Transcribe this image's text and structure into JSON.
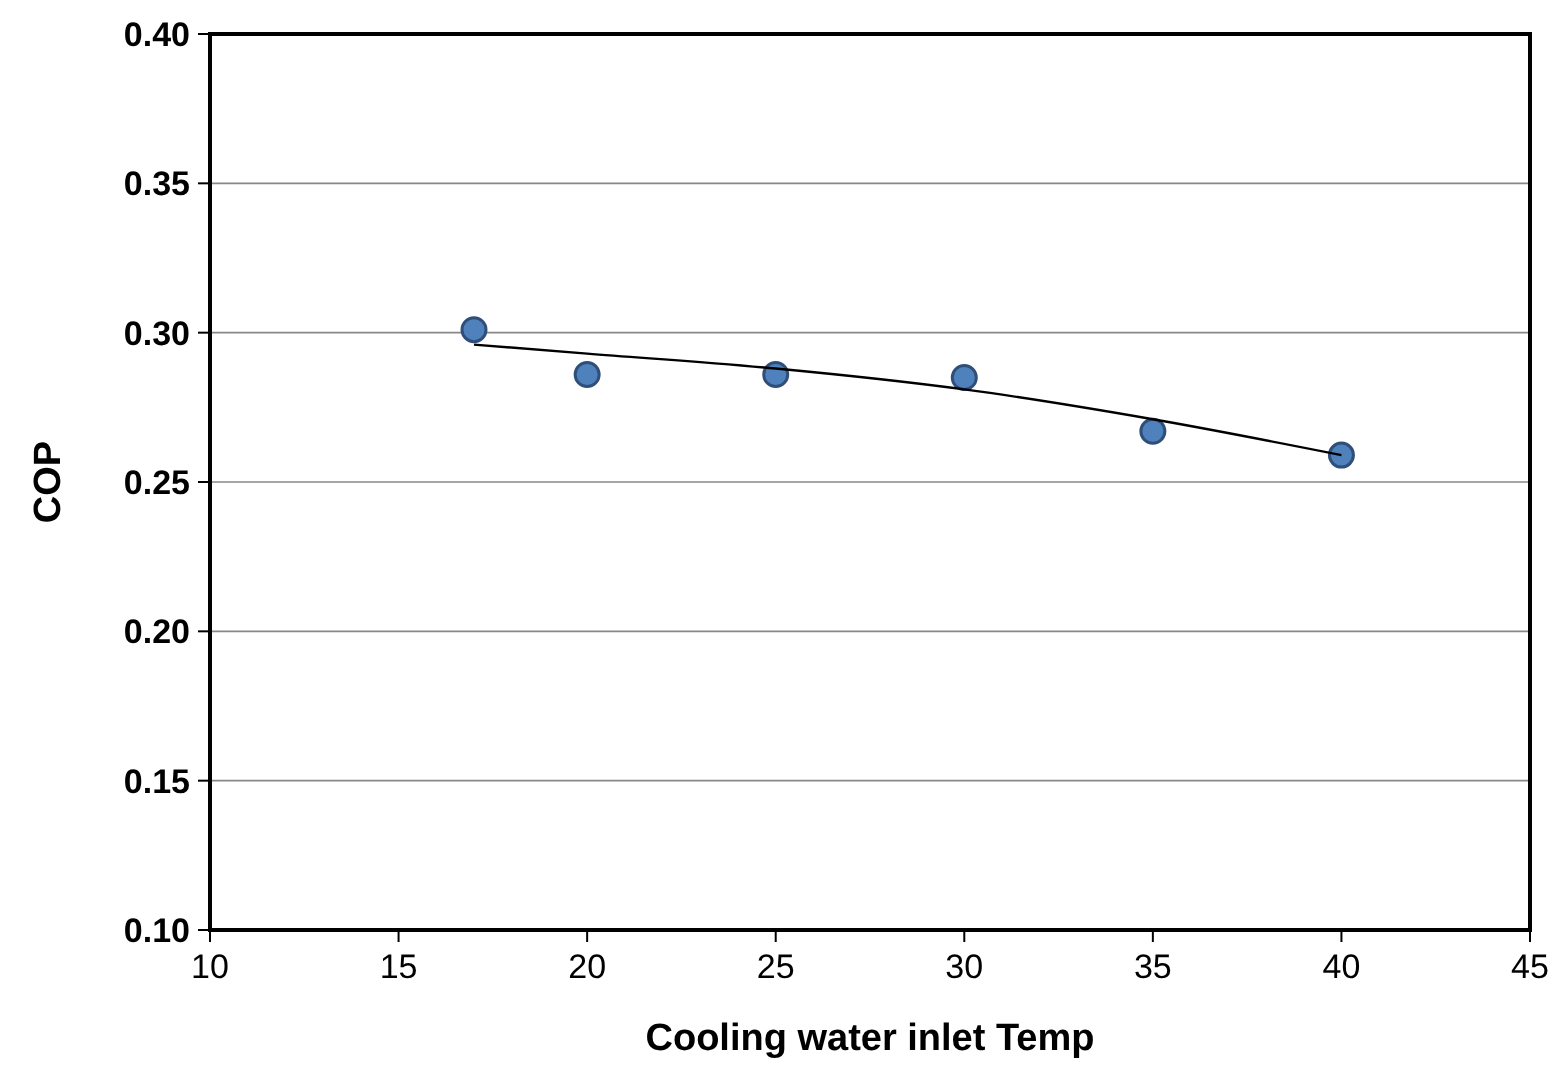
{
  "chart_data": {
    "type": "scatter",
    "xlabel": "Cooling water inlet Temp",
    "ylabel": "COP",
    "xlim": [
      10,
      45
    ],
    "xticks": [
      10,
      15,
      20,
      25,
      30,
      35,
      40,
      45
    ],
    "ylim": [
      0.1,
      0.4
    ],
    "yticks": [
      {
        "value": 0.1,
        "label": "0.10"
      },
      {
        "value": 0.15,
        "label": "0.15"
      },
      {
        "value": 0.2,
        "label": "0.20"
      },
      {
        "value": 0.25,
        "label": "0.25"
      },
      {
        "value": 0.3,
        "label": "0.30"
      },
      {
        "value": 0.35,
        "label": "0.35"
      },
      {
        "value": 0.4,
        "label": "0.40"
      }
    ],
    "grid": "y",
    "series": [
      {
        "color": "#4f81bd",
        "marker": "circle",
        "x": [
          17,
          20,
          25,
          30,
          35,
          40
        ],
        "values": [
          0.301,
          0.286,
          0.286,
          0.285,
          0.267,
          0.259
        ]
      },
      {
        "type": "line",
        "color": "#000000",
        "marker": "none",
        "line_style": "solid",
        "x": [
          17,
          20,
          25,
          30,
          35,
          40
        ],
        "values": [
          0.296,
          0.293,
          0.288,
          0.281,
          0.271,
          0.259
        ]
      }
    ]
  }
}
